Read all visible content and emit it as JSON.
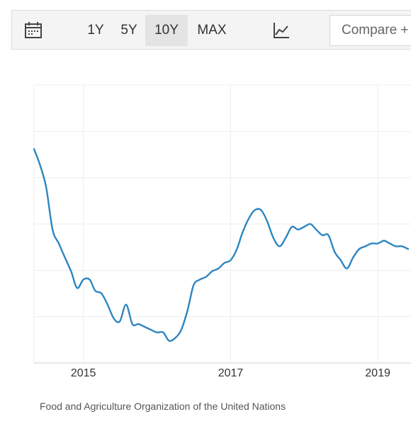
{
  "toolbar": {
    "icons": {
      "calendar": "calendar-icon",
      "chart_type": "line-chart-icon"
    },
    "ranges": [
      {
        "label": "1Y",
        "active": false
      },
      {
        "label": "5Y",
        "active": false
      },
      {
        "label": "10Y",
        "active": true
      },
      {
        "label": "MAX",
        "active": false
      }
    ],
    "compare_label": "Compare +"
  },
  "chart_data": {
    "type": "line",
    "title": "",
    "xlabel": "",
    "ylabel": "",
    "x_ticks": [
      "2015",
      "2017",
      "2019"
    ],
    "xlim": [
      "2014-05-01",
      "2019-06-15"
    ],
    "ylim": [
      0,
      100
    ],
    "grid": true,
    "series": [
      {
        "color": "#2e86c1",
        "x": [
          "2014-05-01",
          "2014-06-01",
          "2014-07-01",
          "2014-08-01",
          "2014-09-01",
          "2014-10-01",
          "2014-11-01",
          "2014-12-01",
          "2015-01-01",
          "2015-02-01",
          "2015-03-01",
          "2015-04-01",
          "2015-05-01",
          "2015-06-01",
          "2015-07-01",
          "2015-08-01",
          "2015-09-01",
          "2015-10-01",
          "2015-11-01",
          "2015-12-01",
          "2016-01-01",
          "2016-02-01",
          "2016-03-01",
          "2016-04-01",
          "2016-05-01",
          "2016-06-01",
          "2016-07-01",
          "2016-08-01",
          "2016-09-01",
          "2016-10-01",
          "2016-11-01",
          "2016-12-01",
          "2017-01-01",
          "2017-02-01",
          "2017-03-01",
          "2017-04-01",
          "2017-05-01",
          "2017-06-01",
          "2017-07-01",
          "2017-08-01",
          "2017-09-01",
          "2017-10-01",
          "2017-11-01",
          "2017-12-01",
          "2018-01-01",
          "2018-02-01",
          "2018-03-01",
          "2018-04-01",
          "2018-05-01",
          "2018-06-01",
          "2018-07-01",
          "2018-08-01",
          "2018-09-01",
          "2018-10-01",
          "2018-11-01",
          "2018-12-01",
          "2019-01-01",
          "2019-02-01",
          "2019-03-01",
          "2019-04-01",
          "2019-05-01",
          "2019-06-01"
        ],
        "y": [
          77,
          71,
          63,
          48,
          43,
          38,
          33,
          27,
          30,
          30,
          26,
          25,
          21,
          16,
          15,
          21,
          14,
          14,
          13,
          12,
          11,
          11,
          8,
          9,
          12,
          19,
          28,
          30,
          31,
          33,
          34,
          36,
          37,
          41,
          47,
          52,
          55,
          55,
          51,
          45,
          42,
          45,
          49,
          48,
          49,
          50,
          48,
          46,
          46,
          40,
          37,
          34,
          38,
          41,
          42,
          43,
          43,
          44,
          43,
          42,
          42,
          41
        ]
      }
    ],
    "source": "Food and Agriculture Organization of the United Nations"
  }
}
